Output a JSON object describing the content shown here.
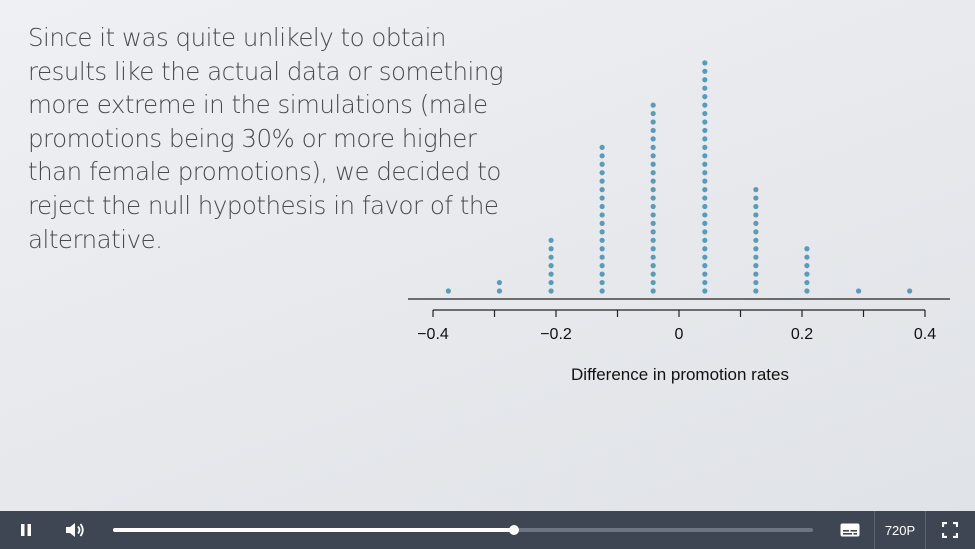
{
  "slide": {
    "lines": [
      "Since it was quite unlikely to obtain",
      "results like the actual data or something",
      "more extreme in the simulations (male",
      "promotions being 30% or more higher",
      "than female promotions), we decided to",
      "reject the null hypothesis in favor of the",
      "alternative."
    ]
  },
  "chart_data": {
    "type": "dot",
    "xlabel": "Difference in promotion rates",
    "ticks": [
      -0.4,
      -0.2,
      0,
      0.2,
      0.4
    ],
    "tick_labels": [
      "−0.4",
      "−0.2",
      "0",
      "0.2",
      "0.4"
    ],
    "x": [
      -0.375,
      -0.292,
      -0.208,
      -0.125,
      -0.042,
      0.042,
      0.125,
      0.208,
      0.292,
      0.375
    ],
    "counts": [
      1,
      2,
      7,
      18,
      23,
      28,
      13,
      6,
      1,
      1
    ],
    "dot_color": "#5b9ab8"
  },
  "player": {
    "progress": 0.573,
    "quality_label": "720P",
    "play_state_icon": "pause-icon",
    "volume_icon": "volume-icon",
    "captions_icon": "captions-icon",
    "fullscreen_icon": "fullscreen-icon",
    "bar_color": "#3f4653"
  }
}
